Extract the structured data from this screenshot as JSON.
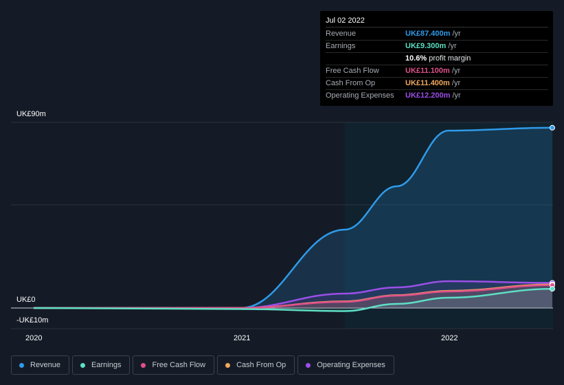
{
  "tooltip": {
    "date": "Jul 02 2022",
    "rows": [
      {
        "label": "Revenue",
        "value": "UK£87.400m",
        "unit": " /yr",
        "color": "#2f9bea"
      },
      {
        "label": "Earnings",
        "value": "UK£9.300m",
        "unit": " /yr",
        "color": "#5de0c5"
      },
      {
        "label": "",
        "value": "10.6%",
        "unit": " profit margin",
        "color": "#ffffff"
      },
      {
        "label": "Free Cash Flow",
        "value": "UK£11.100m",
        "unit": " /yr",
        "color": "#e0508a"
      },
      {
        "label": "Cash From Op",
        "value": "UK£11.400m",
        "unit": " /yr",
        "color": "#f0a95e"
      },
      {
        "label": "Operating Expenses",
        "value": "UK£12.200m",
        "unit": " /yr",
        "color": "#9b4fe8"
      }
    ]
  },
  "legend": [
    {
      "label": "Revenue",
      "color": "#2f9bea"
    },
    {
      "label": "Earnings",
      "color": "#5de0c5"
    },
    {
      "label": "Free Cash Flow",
      "color": "#e0508a"
    },
    {
      "label": "Cash From Op",
      "color": "#f0a95e"
    },
    {
      "label": "Operating Expenses",
      "color": "#9b4fe8"
    }
  ],
  "chart_data": {
    "type": "area",
    "title": "",
    "xlabel": "",
    "ylabel": "",
    "y_tick_labels": [
      "UK£90m",
      "UK£0",
      "-UK£10m"
    ],
    "x_tick_labels": [
      "2020",
      "2021",
      "2022"
    ],
    "ylim": [
      -10,
      90
    ],
    "xlim": [
      2019.9,
      2022.5
    ],
    "grid": true,
    "legend_position": "bottom",
    "highlight_from": 2021.5,
    "series": [
      {
        "name": "Revenue",
        "color": "#2f9bea",
        "x": [
          2020.0,
          2021.0,
          2021.5,
          2021.75,
          2022.0,
          2022.5
        ],
        "y": [
          0,
          0,
          38,
          59,
          86,
          87.4
        ]
      },
      {
        "name": "Earnings",
        "color": "#5de0c5",
        "x": [
          2020.0,
          2021.0,
          2021.5,
          2021.75,
          2022.0,
          2022.5
        ],
        "y": [
          0,
          -0.5,
          -1.5,
          2,
          5,
          9.3
        ]
      },
      {
        "name": "Free Cash Flow",
        "color": "#e0508a",
        "x": [
          2020.0,
          2021.0,
          2021.5,
          2021.75,
          2022.0,
          2022.5
        ],
        "y": [
          0,
          0,
          3,
          6,
          8,
          11.1
        ]
      },
      {
        "name": "Cash From Op",
        "color": "#f0a95e",
        "x": [
          2020.0,
          2021.0,
          2021.5,
          2021.75,
          2022.0,
          2022.5
        ],
        "y": [
          0,
          0,
          3.2,
          6.2,
          8.3,
          11.4
        ]
      },
      {
        "name": "Operating Expenses",
        "color": "#9b4fe8",
        "x": [
          2020.0,
          2021.0,
          2021.5,
          2021.75,
          2022.0,
          2022.5
        ],
        "y": [
          0,
          0,
          7,
          10,
          13,
          12.2
        ]
      }
    ]
  }
}
